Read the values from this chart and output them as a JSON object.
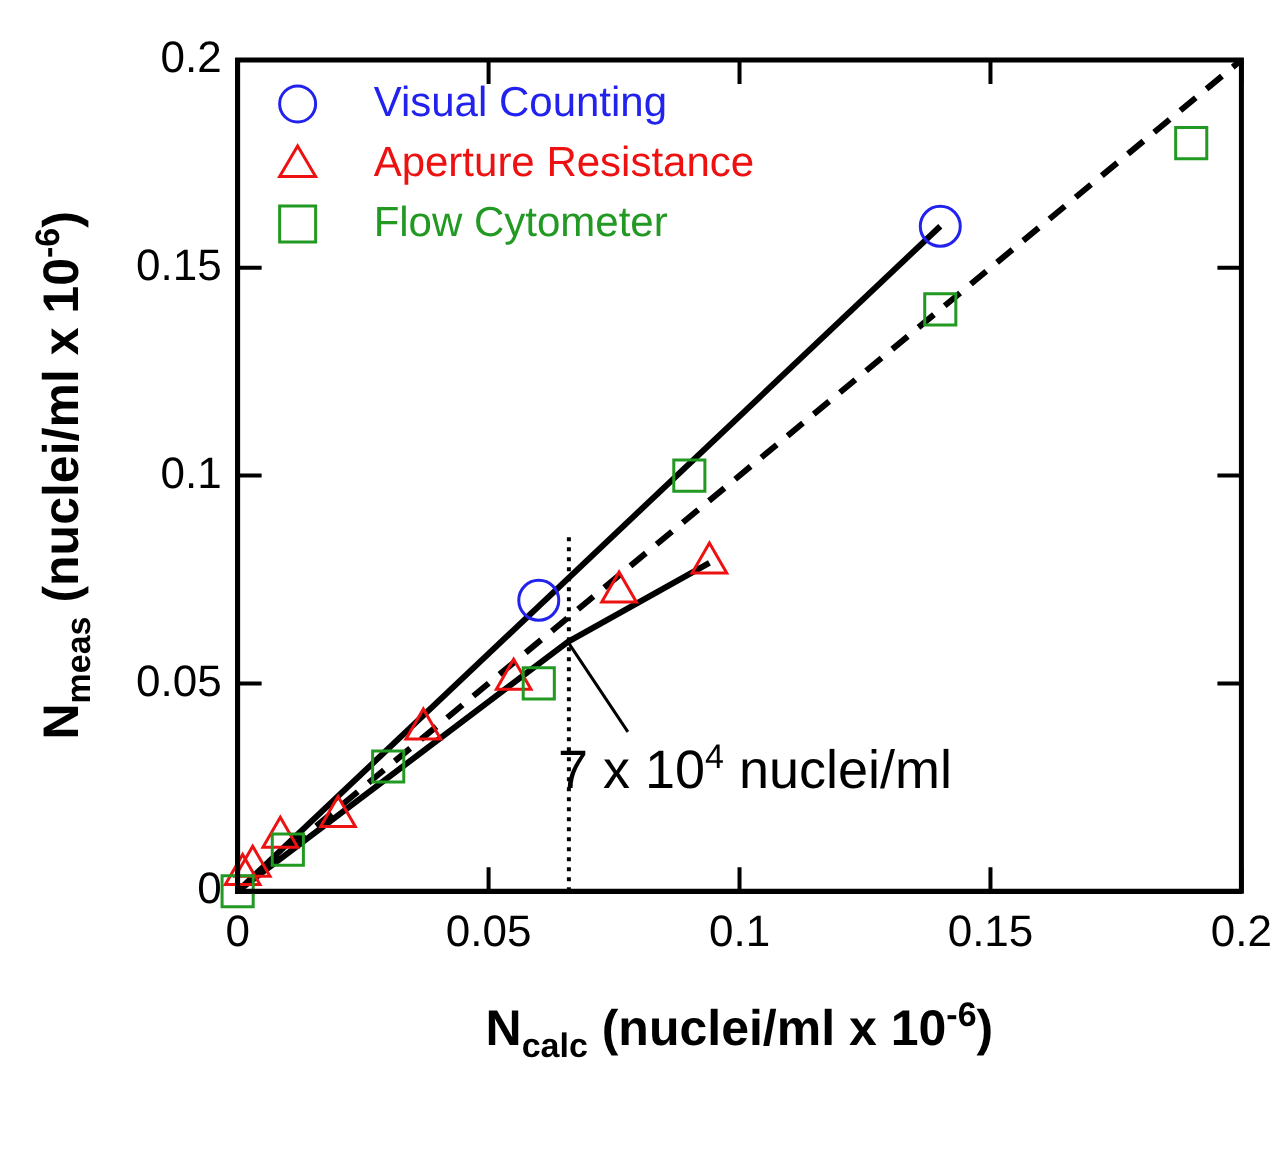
{
  "chart_data": {
    "type": "scatter",
    "xlabel": "N$_{calc}$ (nuclei/ml x 10$^{-6}$)",
    "ylabel": "N$_{meas}$ (nuclei/ml x 10$^{-6}$)",
    "xlim": [
      0,
      0.2
    ],
    "xticks": [
      0,
      0.05,
      0.1,
      0.15,
      0.2
    ],
    "ylim": [
      0,
      0.2
    ],
    "yticks": [
      0,
      0.05,
      0.1,
      0.15,
      0.2
    ],
    "grid": false,
    "legend": "top left",
    "series": [
      {
        "name": "Visual Counting",
        "marker": "circle",
        "color": "#2222ee",
        "x": [
          0.06,
          0.14
        ],
        "values": [
          0.07,
          0.16
        ]
      },
      {
        "name": "Aperture Resistance",
        "marker": "triangle",
        "color": "#ee1111",
        "x": [
          0.001,
          0.003,
          0.0085,
          0.02,
          0.037,
          0.055,
          0.076,
          0.094
        ],
        "values": [
          0.004,
          0.006,
          0.013,
          0.018,
          0.039,
          0.051,
          0.072,
          0.079
        ]
      },
      {
        "name": "Flow Cytometer",
        "marker": "square",
        "color": "#229922",
        "x": [
          0,
          0.01,
          0.03,
          0.06,
          0.09,
          0.14,
          0.19
        ],
        "values": [
          0,
          0.01,
          0.03,
          0.05,
          0.1,
          0.14,
          0.18
        ]
      },
      {
        "type": "line",
        "marker": "none",
        "line_style": "solid",
        "color": "#000000",
        "x": [
          0,
          0.14
        ],
        "values": [
          0,
          0.16
        ]
      },
      {
        "type": "line",
        "marker": "none",
        "line_style": "solid",
        "color": "#000000",
        "x": [
          0,
          0.0658,
          0.094
        ],
        "values": [
          0,
          0.06,
          0.079
        ]
      },
      {
        "type": "line",
        "marker": "none",
        "line_style": "dashed",
        "color": "#000000",
        "x": [
          0,
          0.2
        ],
        "values": [
          0,
          0.2
        ]
      }
    ],
    "ref_lines": [
      {
        "axis": "x",
        "value": 0.066,
        "line_style": "dotted",
        "color": "#000000"
      }
    ],
    "annotations": [
      {
        "text": "7 x 10$^{4}$ nuclei/ml",
        "x": 0.0658,
        "y": 0.06
      }
    ]
  }
}
